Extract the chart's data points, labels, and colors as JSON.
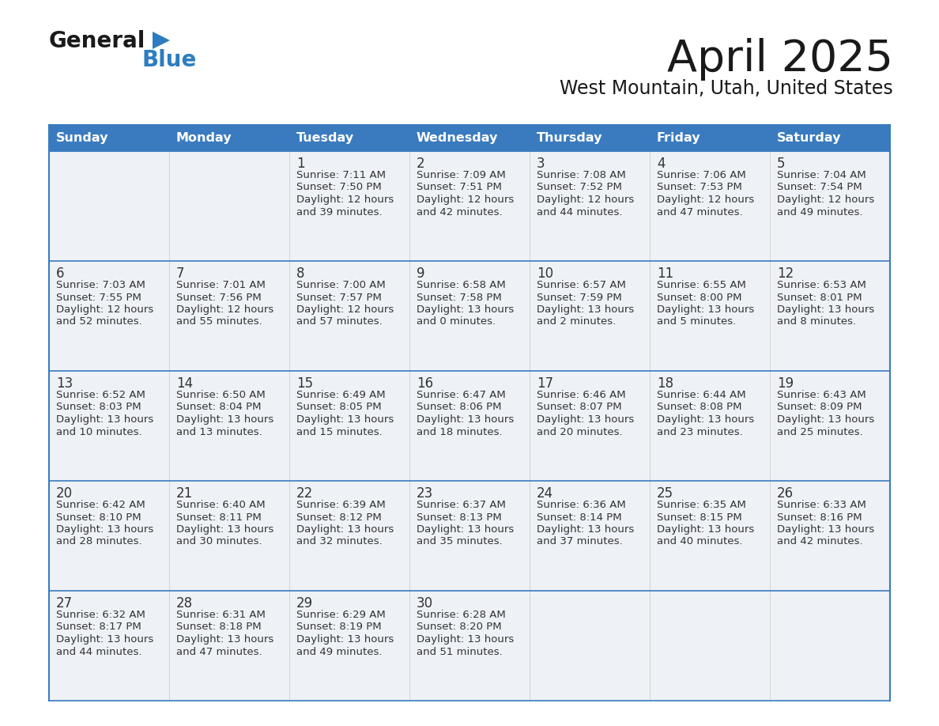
{
  "title": "April 2025",
  "subtitle": "West Mountain, Utah, United States",
  "header_bg": "#3a7bbf",
  "header_text_color": "#ffffff",
  "cell_bg_odd": "#eef2f7",
  "cell_bg_even": "#eef2f7",
  "cell_bg_empty_last": "#f5f7fa",
  "border_color": "#3a7bbf",
  "row_sep_color": "#3a7bbf",
  "text_color": "#333333",
  "days_of_week": [
    "Sunday",
    "Monday",
    "Tuesday",
    "Wednesday",
    "Thursday",
    "Friday",
    "Saturday"
  ],
  "weeks": [
    [
      {
        "day": "",
        "sunrise": "",
        "sunset": "",
        "daylight_h": "",
        "daylight_m": ""
      },
      {
        "day": "",
        "sunrise": "",
        "sunset": "",
        "daylight_h": "",
        "daylight_m": ""
      },
      {
        "day": "1",
        "sunrise": "7:11 AM",
        "sunset": "7:50 PM",
        "daylight_h": "12 hours",
        "daylight_m": "and 39 minutes."
      },
      {
        "day": "2",
        "sunrise": "7:09 AM",
        "sunset": "7:51 PM",
        "daylight_h": "12 hours",
        "daylight_m": "and 42 minutes."
      },
      {
        "day": "3",
        "sunrise": "7:08 AM",
        "sunset": "7:52 PM",
        "daylight_h": "12 hours",
        "daylight_m": "and 44 minutes."
      },
      {
        "day": "4",
        "sunrise": "7:06 AM",
        "sunset": "7:53 PM",
        "daylight_h": "12 hours",
        "daylight_m": "and 47 minutes."
      },
      {
        "day": "5",
        "sunrise": "7:04 AM",
        "sunset": "7:54 PM",
        "daylight_h": "12 hours",
        "daylight_m": "and 49 minutes."
      }
    ],
    [
      {
        "day": "6",
        "sunrise": "7:03 AM",
        "sunset": "7:55 PM",
        "daylight_h": "12 hours",
        "daylight_m": "and 52 minutes."
      },
      {
        "day": "7",
        "sunrise": "7:01 AM",
        "sunset": "7:56 PM",
        "daylight_h": "12 hours",
        "daylight_m": "and 55 minutes."
      },
      {
        "day": "8",
        "sunrise": "7:00 AM",
        "sunset": "7:57 PM",
        "daylight_h": "12 hours",
        "daylight_m": "and 57 minutes."
      },
      {
        "day": "9",
        "sunrise": "6:58 AM",
        "sunset": "7:58 PM",
        "daylight_h": "13 hours",
        "daylight_m": "and 0 minutes."
      },
      {
        "day": "10",
        "sunrise": "6:57 AM",
        "sunset": "7:59 PM",
        "daylight_h": "13 hours",
        "daylight_m": "and 2 minutes."
      },
      {
        "day": "11",
        "sunrise": "6:55 AM",
        "sunset": "8:00 PM",
        "daylight_h": "13 hours",
        "daylight_m": "and 5 minutes."
      },
      {
        "day": "12",
        "sunrise": "6:53 AM",
        "sunset": "8:01 PM",
        "daylight_h": "13 hours",
        "daylight_m": "and 8 minutes."
      }
    ],
    [
      {
        "day": "13",
        "sunrise": "6:52 AM",
        "sunset": "8:03 PM",
        "daylight_h": "13 hours",
        "daylight_m": "and 10 minutes."
      },
      {
        "day": "14",
        "sunrise": "6:50 AM",
        "sunset": "8:04 PM",
        "daylight_h": "13 hours",
        "daylight_m": "and 13 minutes."
      },
      {
        "day": "15",
        "sunrise": "6:49 AM",
        "sunset": "8:05 PM",
        "daylight_h": "13 hours",
        "daylight_m": "and 15 minutes."
      },
      {
        "day": "16",
        "sunrise": "6:47 AM",
        "sunset": "8:06 PM",
        "daylight_h": "13 hours",
        "daylight_m": "and 18 minutes."
      },
      {
        "day": "17",
        "sunrise": "6:46 AM",
        "sunset": "8:07 PM",
        "daylight_h": "13 hours",
        "daylight_m": "and 20 minutes."
      },
      {
        "day": "18",
        "sunrise": "6:44 AM",
        "sunset": "8:08 PM",
        "daylight_h": "13 hours",
        "daylight_m": "and 23 minutes."
      },
      {
        "day": "19",
        "sunrise": "6:43 AM",
        "sunset": "8:09 PM",
        "daylight_h": "13 hours",
        "daylight_m": "and 25 minutes."
      }
    ],
    [
      {
        "day": "20",
        "sunrise": "6:42 AM",
        "sunset": "8:10 PM",
        "daylight_h": "13 hours",
        "daylight_m": "and 28 minutes."
      },
      {
        "day": "21",
        "sunrise": "6:40 AM",
        "sunset": "8:11 PM",
        "daylight_h": "13 hours",
        "daylight_m": "and 30 minutes."
      },
      {
        "day": "22",
        "sunrise": "6:39 AM",
        "sunset": "8:12 PM",
        "daylight_h": "13 hours",
        "daylight_m": "and 32 minutes."
      },
      {
        "day": "23",
        "sunrise": "6:37 AM",
        "sunset": "8:13 PM",
        "daylight_h": "13 hours",
        "daylight_m": "and 35 minutes."
      },
      {
        "day": "24",
        "sunrise": "6:36 AM",
        "sunset": "8:14 PM",
        "daylight_h": "13 hours",
        "daylight_m": "and 37 minutes."
      },
      {
        "day": "25",
        "sunrise": "6:35 AM",
        "sunset": "8:15 PM",
        "daylight_h": "13 hours",
        "daylight_m": "and 40 minutes."
      },
      {
        "day": "26",
        "sunrise": "6:33 AM",
        "sunset": "8:16 PM",
        "daylight_h": "13 hours",
        "daylight_m": "and 42 minutes."
      }
    ],
    [
      {
        "day": "27",
        "sunrise": "6:32 AM",
        "sunset": "8:17 PM",
        "daylight_h": "13 hours",
        "daylight_m": "and 44 minutes."
      },
      {
        "day": "28",
        "sunrise": "6:31 AM",
        "sunset": "8:18 PM",
        "daylight_h": "13 hours",
        "daylight_m": "and 47 minutes."
      },
      {
        "day": "29",
        "sunrise": "6:29 AM",
        "sunset": "8:19 PM",
        "daylight_h": "13 hours",
        "daylight_m": "and 49 minutes."
      },
      {
        "day": "30",
        "sunrise": "6:28 AM",
        "sunset": "8:20 PM",
        "daylight_h": "13 hours",
        "daylight_m": "and 51 minutes."
      },
      {
        "day": "",
        "sunrise": "",
        "sunset": "",
        "daylight_h": "",
        "daylight_m": ""
      },
      {
        "day": "",
        "sunrise": "",
        "sunset": "",
        "daylight_h": "",
        "daylight_m": ""
      },
      {
        "day": "",
        "sunrise": "",
        "sunset": "",
        "daylight_h": "",
        "daylight_m": ""
      }
    ]
  ]
}
